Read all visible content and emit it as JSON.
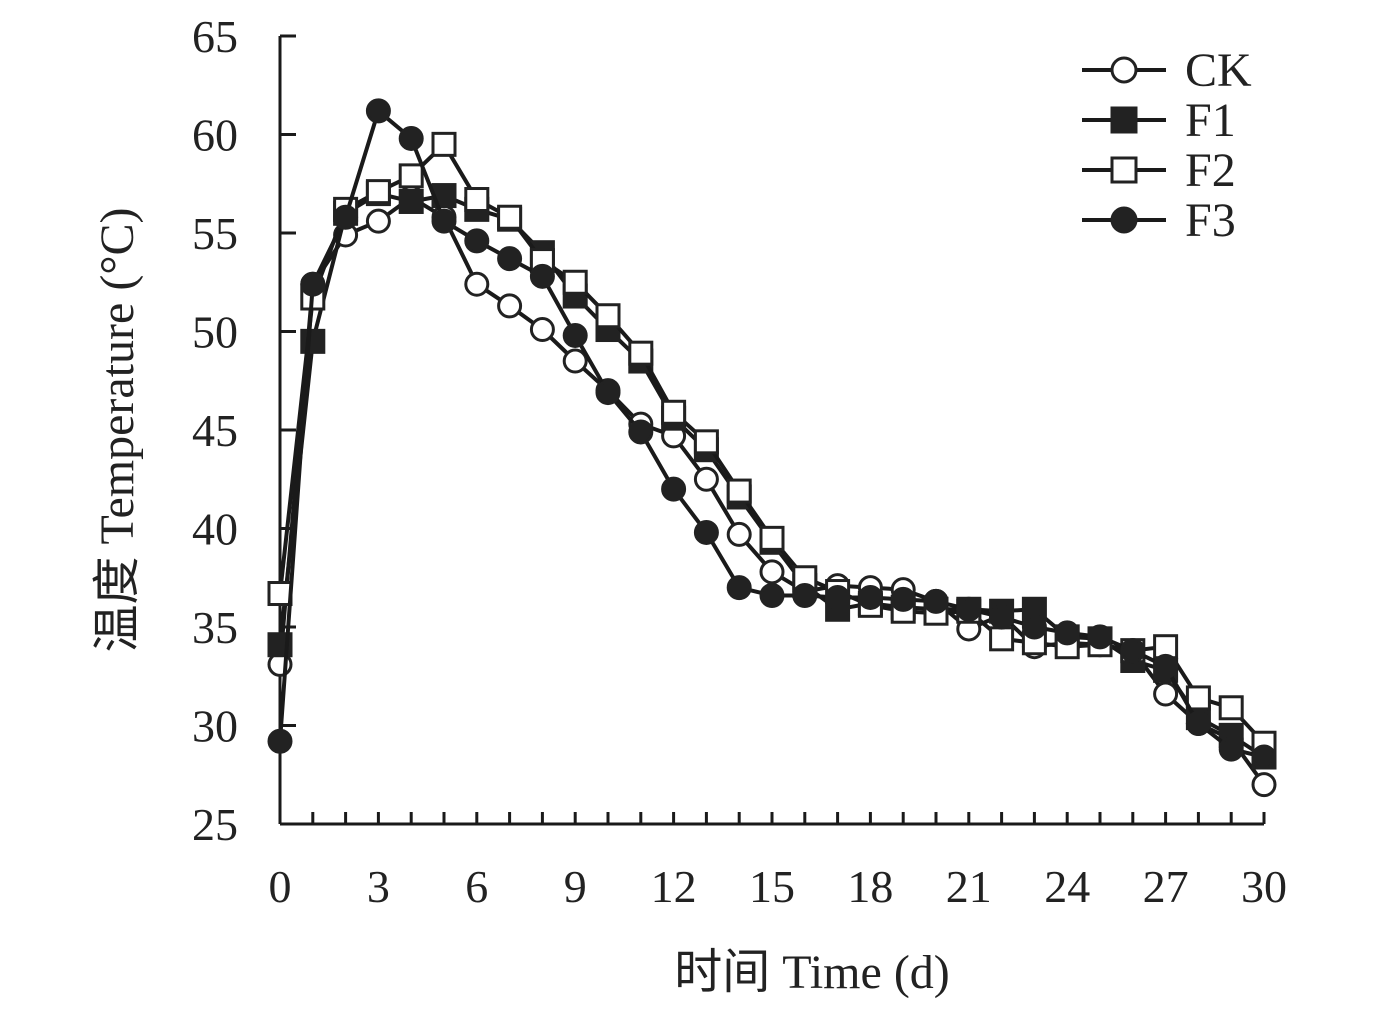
{
  "chart_data": {
    "type": "line",
    "xlabel": "时间 Time (d)",
    "ylabel": "温度 Temperature (°C)",
    "xlim": [
      0,
      30
    ],
    "ylim": [
      25,
      65
    ],
    "x_ticks": [
      0,
      3,
      6,
      9,
      12,
      15,
      18,
      21,
      24,
      27,
      30
    ],
    "y_ticks": [
      25,
      30,
      35,
      40,
      45,
      50,
      55,
      60,
      65
    ],
    "grid": false,
    "legend_position": "top-right",
    "x": [
      0,
      1,
      2,
      3,
      4,
      5,
      6,
      7,
      8,
      9,
      10,
      11,
      12,
      13,
      14,
      15,
      16,
      17,
      18,
      19,
      20,
      21,
      22,
      23,
      24,
      25,
      26,
      27,
      28,
      29,
      30
    ],
    "series": [
      {
        "name": "CK",
        "marker": "circle-open",
        "values": [
          33.1,
          52.4,
          54.9,
          55.6,
          56.8,
          55.8,
          52.4,
          51.3,
          50.1,
          48.5,
          47.0,
          45.3,
          44.7,
          42.5,
          39.7,
          37.8,
          36.8,
          37.1,
          37.0,
          36.9,
          36.3,
          34.9,
          35.6,
          34.0,
          34.2,
          34.1,
          33.8,
          31.6,
          30.1,
          29.3,
          27.0
        ]
      },
      {
        "name": "F1",
        "marker": "square-filled",
        "values": [
          34.1,
          49.5,
          56.0,
          57.0,
          56.6,
          56.9,
          56.2,
          55.7,
          54.0,
          51.8,
          50.1,
          48.5,
          45.6,
          44.0,
          41.6,
          39.3,
          37.1,
          35.9,
          36.2,
          36.0,
          35.9,
          35.9,
          35.8,
          35.9,
          34.5,
          34.4,
          33.3,
          32.8,
          30.4,
          29.5,
          28.4
        ]
      },
      {
        "name": "F2",
        "marker": "square-open",
        "values": [
          36.7,
          51.7,
          56.2,
          57.1,
          57.9,
          59.5,
          56.7,
          55.8,
          53.6,
          52.5,
          50.8,
          48.9,
          45.9,
          44.4,
          41.9,
          39.5,
          37.5,
          36.8,
          36.1,
          35.8,
          35.7,
          35.8,
          34.4,
          34.2,
          34.0,
          34.1,
          33.8,
          34.0,
          31.4,
          30.9,
          29.1
        ]
      },
      {
        "name": "F3",
        "marker": "circle-filled",
        "values": [
          29.2,
          52.4,
          55.8,
          61.2,
          59.8,
          55.6,
          54.6,
          53.7,
          52.8,
          49.8,
          46.9,
          44.9,
          42.0,
          39.8,
          37.0,
          36.6,
          36.6,
          36.5,
          36.5,
          36.4,
          36.3,
          35.9,
          35.5,
          35.0,
          34.7,
          34.5,
          33.8,
          33.0,
          30.1,
          28.8,
          28.4
        ]
      }
    ]
  }
}
